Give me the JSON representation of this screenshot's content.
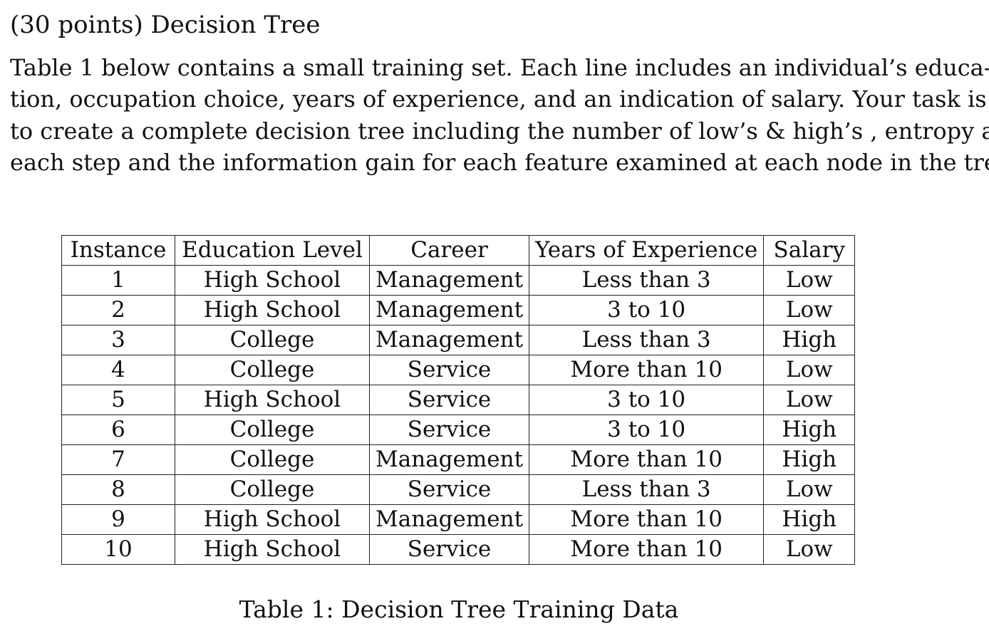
{
  "heading": "(30 points) Decision Tree",
  "paragraph_lines": [
    "Table 1 below contains a small training set. Each line includes an individual’s educa-",
    "tion, occupation choice, years of experience, and an indication of salary. Your task is",
    "to create a complete decision tree including the number of low’s & high’s , entropy at",
    "each step and the information gain for each feature examined at each node in the tree."
  ],
  "table": {
    "headers": [
      "Instance",
      "Education Level",
      "Career",
      "Years of Experience",
      "Salary"
    ],
    "rows": [
      [
        "1",
        "High School",
        "Management",
        "Less than 3",
        "Low"
      ],
      [
        "2",
        "High School",
        "Management",
        "3 to 10",
        "Low"
      ],
      [
        "3",
        "College",
        "Management",
        "Less than 3",
        "High"
      ],
      [
        "4",
        "College",
        "Service",
        "More than 10",
        "Low"
      ],
      [
        "5",
        "High School",
        "Service",
        "3 to 10",
        "Low"
      ],
      [
        "6",
        "College",
        "Service",
        "3 to 10",
        "High"
      ],
      [
        "7",
        "College",
        "Management",
        "More than 10",
        "High"
      ],
      [
        "8",
        "College",
        "Service",
        "Less than 3",
        "Low"
      ],
      [
        "9",
        "High School",
        "Management",
        "More than 10",
        "High"
      ],
      [
        "10",
        "High School",
        "Service",
        "More than 10",
        "Low"
      ]
    ]
  },
  "caption": "Table 1: Decision Tree Training Data"
}
